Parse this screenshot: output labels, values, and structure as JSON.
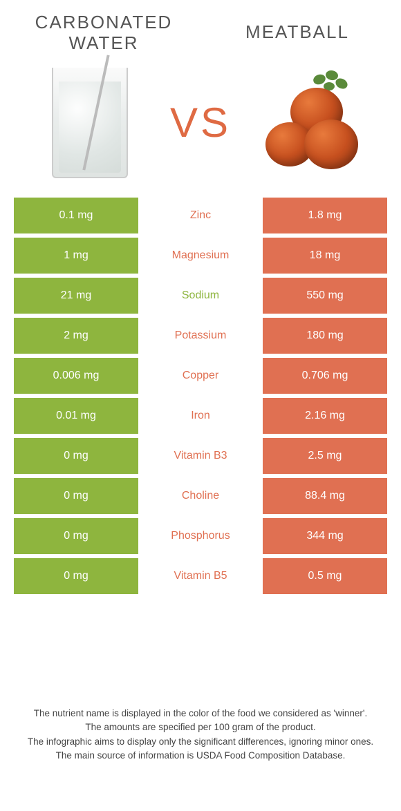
{
  "colors": {
    "left": "#8eb53e",
    "right": "#e07052",
    "mid_bg": "#ffffff",
    "title": "#555555",
    "vs": "#df6a43",
    "leaf": "#5a8a3a"
  },
  "header": {
    "left_title": "CARBONATED\nWATER",
    "right_title": "MEATBALL",
    "vs": "VS"
  },
  "rows": [
    {
      "left": "0.1 mg",
      "label": "Zinc",
      "right": "1.8 mg",
      "winner": "right"
    },
    {
      "left": "1 mg",
      "label": "Magnesium",
      "right": "18 mg",
      "winner": "right"
    },
    {
      "left": "21 mg",
      "label": "Sodium",
      "right": "550 mg",
      "winner": "left"
    },
    {
      "left": "2 mg",
      "label": "Potassium",
      "right": "180 mg",
      "winner": "right"
    },
    {
      "left": "0.006 mg",
      "label": "Copper",
      "right": "0.706 mg",
      "winner": "right"
    },
    {
      "left": "0.01 mg",
      "label": "Iron",
      "right": "2.16 mg",
      "winner": "right"
    },
    {
      "left": "0 mg",
      "label": "Vitamin B3",
      "right": "2.5 mg",
      "winner": "right"
    },
    {
      "left": "0 mg",
      "label": "Choline",
      "right": "88.4 mg",
      "winner": "right"
    },
    {
      "left": "0 mg",
      "label": "Phosphorus",
      "right": "344 mg",
      "winner": "right"
    },
    {
      "left": "0 mg",
      "label": "Vitamin B5",
      "right": "0.5 mg",
      "winner": "right"
    }
  ],
  "footer": {
    "l1": "The nutrient name is displayed in the color of the food we considered as 'winner'.",
    "l2": "The amounts are specified per 100 gram of the product.",
    "l3": "The infographic aims to display only the significant differences, ignoring minor ones.",
    "l4": "The main source of information is USDA Food Composition Database."
  }
}
